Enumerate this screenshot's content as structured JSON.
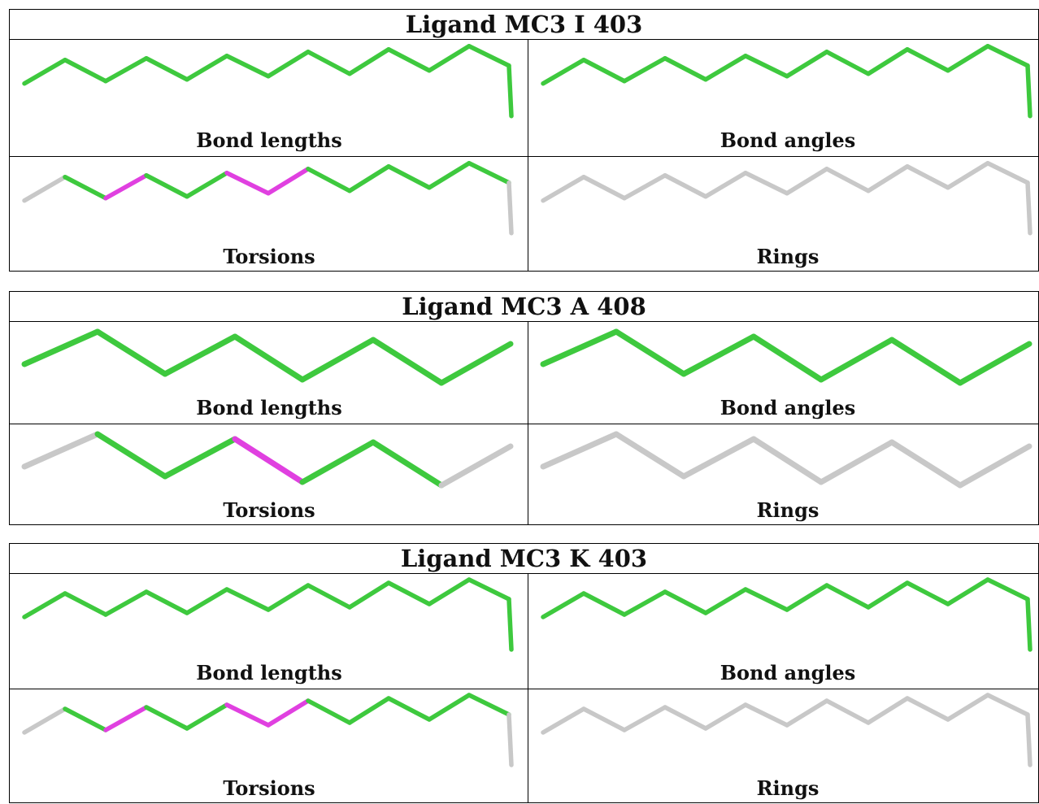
{
  "colors": {
    "pass": "#3ec93e",
    "outlier": "#e040e0",
    "neutral": "#c8c8c8"
  },
  "panel_labels": [
    "Bond lengths",
    "Bond angles",
    "Torsions",
    "Rings"
  ],
  "ligands": [
    {
      "title": "Ligand MC3 I 403",
      "shape": "long",
      "panels": [
        {
          "label": "Bond lengths",
          "colors": [
            "pass",
            "pass",
            "pass",
            "pass",
            "pass",
            "pass",
            "pass",
            "pass",
            "pass",
            "pass",
            "pass",
            "pass",
            "pass"
          ]
        },
        {
          "label": "Bond angles",
          "colors": [
            "pass",
            "pass",
            "pass",
            "pass",
            "pass",
            "pass",
            "pass",
            "pass",
            "pass",
            "pass",
            "pass",
            "pass",
            "pass"
          ]
        },
        {
          "label": "Torsions",
          "colors": [
            "neutral",
            "pass",
            "outlier",
            "pass",
            "pass",
            "outlier",
            "outlier",
            "pass",
            "pass",
            "pass",
            "pass",
            "pass",
            "neutral"
          ]
        },
        {
          "label": "Rings",
          "colors": [
            "neutral",
            "neutral",
            "neutral",
            "neutral",
            "neutral",
            "neutral",
            "neutral",
            "neutral",
            "neutral",
            "neutral",
            "neutral",
            "neutral",
            "neutral"
          ]
        }
      ]
    },
    {
      "title": "Ligand MC3 A 408",
      "shape": "short",
      "panels": [
        {
          "label": "Bond lengths",
          "colors": [
            "pass",
            "pass",
            "pass",
            "pass",
            "pass",
            "pass",
            "pass"
          ]
        },
        {
          "label": "Bond angles",
          "colors": [
            "pass",
            "pass",
            "pass",
            "pass",
            "pass",
            "pass",
            "pass"
          ]
        },
        {
          "label": "Torsions",
          "colors": [
            "neutral",
            "pass",
            "pass",
            "outlier",
            "pass",
            "pass",
            "neutral"
          ]
        },
        {
          "label": "Rings",
          "colors": [
            "neutral",
            "neutral",
            "neutral",
            "neutral",
            "neutral",
            "neutral",
            "neutral"
          ]
        }
      ]
    },
    {
      "title": "Ligand MC3 K 403",
      "shape": "long",
      "panels": [
        {
          "label": "Bond lengths",
          "colors": [
            "pass",
            "pass",
            "pass",
            "pass",
            "pass",
            "pass",
            "pass",
            "pass",
            "pass",
            "pass",
            "pass",
            "pass",
            "pass"
          ]
        },
        {
          "label": "Bond angles",
          "colors": [
            "pass",
            "pass",
            "pass",
            "pass",
            "pass",
            "pass",
            "pass",
            "pass",
            "pass",
            "pass",
            "pass",
            "pass",
            "pass"
          ]
        },
        {
          "label": "Torsions",
          "colors": [
            "neutral",
            "pass",
            "outlier",
            "pass",
            "pass",
            "outlier",
            "outlier",
            "pass",
            "pass",
            "pass",
            "pass",
            "pass",
            "neutral"
          ]
        },
        {
          "label": "Rings",
          "colors": [
            "neutral",
            "neutral",
            "neutral",
            "neutral",
            "neutral",
            "neutral",
            "neutral",
            "neutral",
            "neutral",
            "neutral",
            "neutral",
            "neutral",
            "neutral"
          ]
        }
      ]
    }
  ]
}
